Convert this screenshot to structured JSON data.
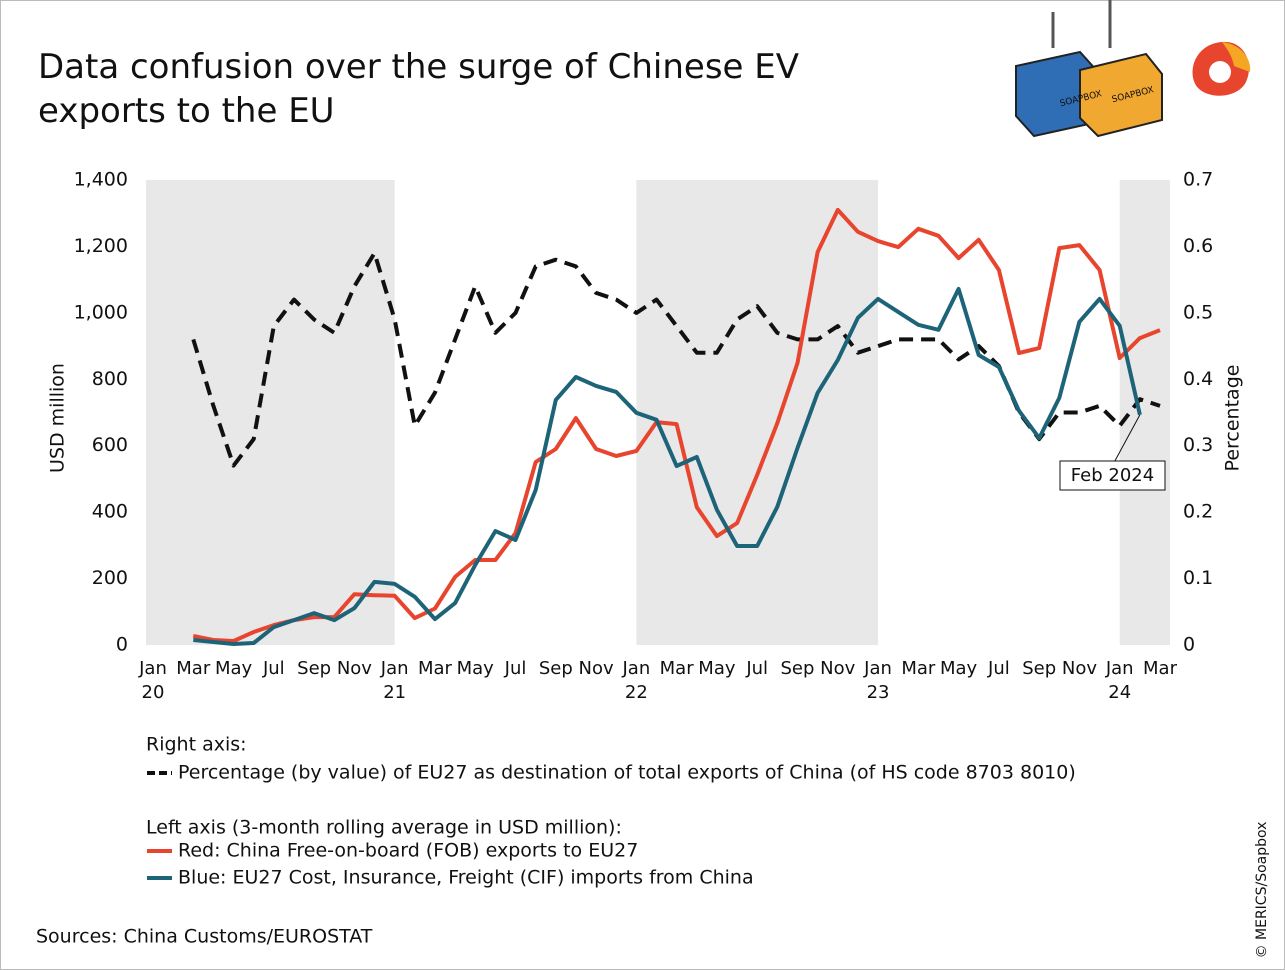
{
  "chart_data": {
    "type": "line",
    "title": "Data confusion over the surge of Chinese EV exports to the EU",
    "y_label": "USD million",
    "y2_label": "Percentage",
    "categories": [
      "Jan\n20",
      null,
      "Mar",
      null,
      "May",
      null,
      "Jul",
      null,
      "Sep",
      null,
      "Nov",
      null,
      "Jan\n21",
      null,
      "Mar",
      null,
      "May",
      null,
      "Jul",
      null,
      "Sep",
      null,
      "Nov",
      null,
      "Jan\n22",
      null,
      "Mar",
      null,
      "May",
      null,
      "Jul",
      null,
      "Sep",
      null,
      "Nov",
      null,
      "Jan\n23",
      null,
      "Mar",
      null,
      "May",
      null,
      "Jul",
      null,
      "Sep",
      null,
      "Nov",
      null,
      "Jan\n24",
      null,
      "Mar"
    ],
    "ylim": [
      0,
      1400
    ],
    "yticks": [
      0,
      200,
      400,
      600,
      800,
      {
        "value": 1000,
        "label": "1,000"
      },
      {
        "value": 1200,
        "label": "1,200"
      },
      {
        "value": 1400,
        "label": "1,400"
      }
    ],
    "y2lim": [
      0,
      0.7
    ],
    "y2ticks": [
      0,
      0.1,
      0.2,
      0.3,
      0.4,
      0.5,
      0.6,
      0.7
    ],
    "grid": false,
    "legend_titles": [
      "Right axis:",
      "Left axis (3-month rolling average in USD million):"
    ],
    "series": [
      {
        "name": "Percentage (by value) of EU27 as destination of total exports of China (of HS code 8703 8010)",
        "color": "#111111",
        "axis": "y2",
        "dashed": true,
        "values": [
          null,
          null,
          0.46,
          0.36,
          0.27,
          0.31,
          0.48,
          0.52,
          0.49,
          0.47,
          0.54,
          0.59,
          0.49,
          0.33,
          0.38,
          0.46,
          0.54,
          0.47,
          0.5,
          0.57,
          0.58,
          0.57,
          0.53,
          0.52,
          0.5,
          0.52,
          0.48,
          0.44,
          0.44,
          0.49,
          0.51,
          0.47,
          0.46,
          0.46,
          0.48,
          0.44,
          0.45,
          0.46,
          0.46,
          0.46,
          0.43,
          0.45,
          0.42,
          0.35,
          0.31,
          0.35,
          0.35,
          0.36,
          0.33,
          0.37,
          0.36
        ]
      },
      {
        "name": "Red: China Free-on-board (FOB) exports to EU27",
        "color": "#e8452f",
        "values": [
          null,
          null,
          27,
          15,
          12,
          39,
          60,
          75,
          84,
          84,
          153,
          150,
          148,
          81,
          110,
          205,
          256,
          256,
          337,
          551,
          590,
          683,
          590,
          569,
          584,
          671,
          665,
          415,
          328,
          367,
          512,
          668,
          849,
          1183,
          1310,
          1244,
          1216,
          1198,
          1253,
          1232,
          1165,
          1220,
          1129,
          879,
          894,
          1195,
          1204,
          1129,
          864,
          924,
          948
        ]
      },
      {
        "name": "Blue: EU27 Cost, Insurance, Freight (CIF) imports from China",
        "color": "#1e6478",
        "values": [
          null,
          null,
          15,
          9,
          3,
          6,
          54,
          75,
          96,
          75,
          111,
          190,
          184,
          145,
          78,
          126,
          241,
          343,
          316,
          467,
          738,
          807,
          780,
          762,
          699,
          678,
          539,
          566,
          407,
          298,
          298,
          416,
          593,
          759,
          858,
          985,
          1042,
          1003,
          964,
          949,
          1072,
          873,
          837,
          705,
          623,
          744,
          973,
          1042,
          961,
          693,
          null
        ]
      }
    ],
    "annotations": [
      {
        "text": "Feb 2024"
      }
    ],
    "source": "Sources: China Customs/EUROSTAT",
    "credit": "© MERICS/Soapbox"
  },
  "illustration_labels": [
    "SOAPBOX",
    "SOAPBOX"
  ]
}
